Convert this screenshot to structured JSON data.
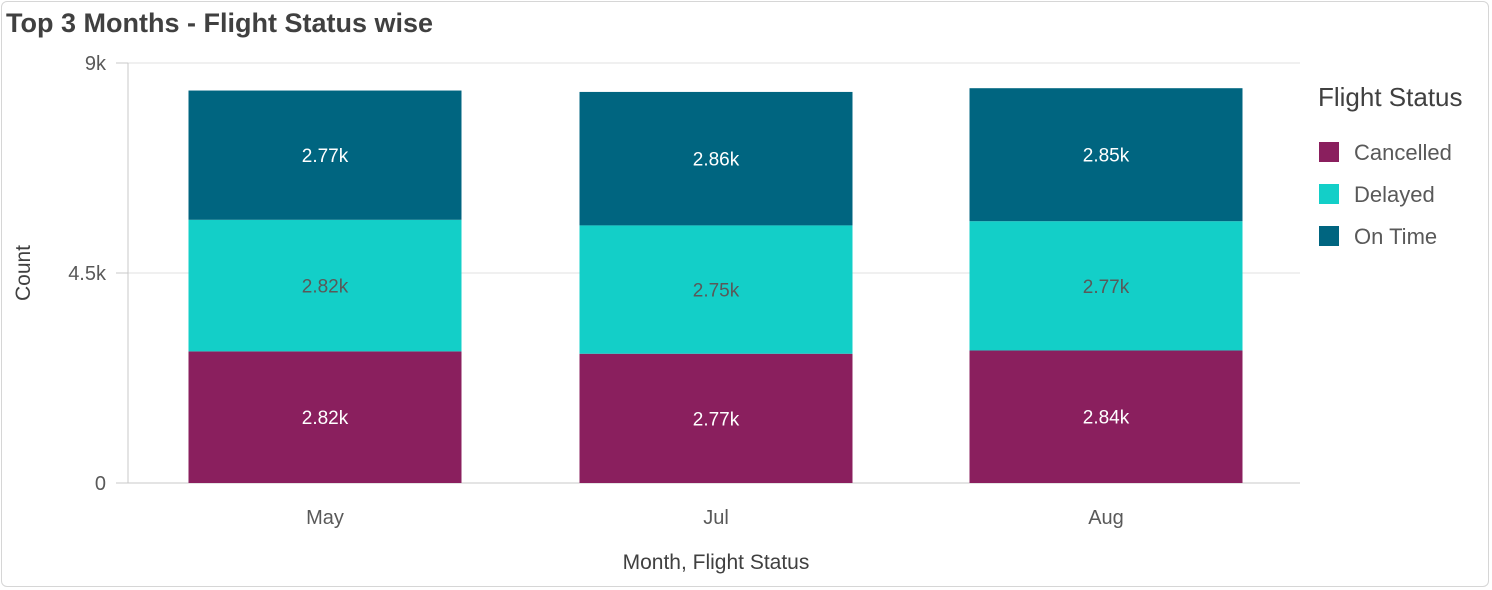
{
  "header": {
    "title": "Top 3 Months - Flight Status wise"
  },
  "colors": {
    "Cancelled": "#8a1f5e",
    "Delayed": "#13cfc8",
    "On Time": "#006580",
    "label_light": "#ffffff",
    "label_dark": "#595959"
  },
  "chart_data": {
    "type": "bar",
    "stacked": true,
    "title": "Top 3 Months - Flight Status wise",
    "xlabel": "Month, Flight Status",
    "ylabel": "Count",
    "categories": [
      "May",
      "Jul",
      "Aug"
    ],
    "ylim": [
      0,
      9000
    ],
    "yticks": [
      0,
      4500,
      9000
    ],
    "ytick_labels": [
      "0",
      "4.5k",
      "9k"
    ],
    "grid": true,
    "legend": {
      "title": "Flight Status",
      "position": "right"
    },
    "series": [
      {
        "name": "Cancelled",
        "values": [
          2820,
          2770,
          2840
        ],
        "labels": [
          "2.82k",
          "2.77k",
          "2.84k"
        ]
      },
      {
        "name": "Delayed",
        "values": [
          2820,
          2750,
          2770
        ],
        "labels": [
          "2.82k",
          "2.75k",
          "2.77k"
        ]
      },
      {
        "name": "On Time",
        "values": [
          2770,
          2860,
          2850
        ],
        "labels": [
          "2.77k",
          "2.86k",
          "2.85k"
        ]
      }
    ]
  }
}
